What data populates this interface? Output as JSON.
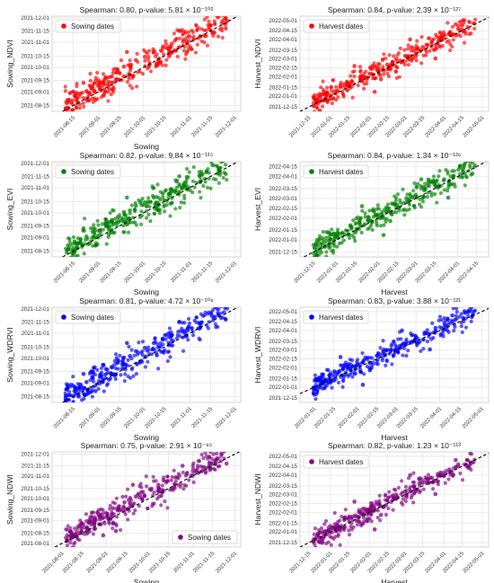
{
  "figure": {
    "background": "#ffffff",
    "panel_background": "#ffffff",
    "grid_color": "#e6e6e6",
    "axis_color": "#cccccc",
    "fit_line_color": "#000000"
  },
  "chart_data": [
    {
      "type": "scatter",
      "kind": "sowing",
      "title": "Spearman: 0.80, p-value: 5.81 × 10⁻¹⁰²",
      "xlabel": "Sowing",
      "ylabel": "Sowing_NDVI",
      "legend": {
        "label": "Sowing dates",
        "position": "top-left"
      },
      "color": "#ff0000",
      "xticks": [
        "2021-08-15",
        "2021-09-01",
        "2021-09-15",
        "2021-10-01",
        "2021-10-15",
        "2021-11-01",
        "2021-11-15",
        "2021-12-01"
      ],
      "yticks": [
        "2021-08-15",
        "2021-09-01",
        "2021-09-15",
        "2021-10-01",
        "2021-10-15",
        "2021-11-01",
        "2021-11-15",
        "2021-12-01"
      ],
      "xlim": [
        "2021-08-01",
        "2021-12-05"
      ],
      "ylim": [
        "2021-08-08",
        "2021-12-03"
      ],
      "grid": true,
      "trend_line": "dashed",
      "points": [
        [
          "2021-08-16",
          "2021-08-27"
        ],
        [
          "2021-08-20",
          "2021-08-30"
        ],
        [
          "2021-08-24",
          "2021-09-02"
        ],
        [
          "2021-08-28",
          "2021-09-08"
        ],
        [
          "2021-09-02",
          "2021-09-10"
        ],
        [
          "2021-09-06",
          "2021-09-18"
        ],
        [
          "2021-09-10",
          "2021-09-20"
        ],
        [
          "2021-09-14",
          "2021-09-26"
        ],
        [
          "2021-09-18",
          "2021-10-02"
        ],
        [
          "2021-09-22",
          "2021-10-04"
        ],
        [
          "2021-09-26",
          "2021-10-10"
        ],
        [
          "2021-10-02",
          "2021-10-14"
        ],
        [
          "2021-10-08",
          "2021-10-20"
        ],
        [
          "2021-10-14",
          "2021-10-25"
        ],
        [
          "2021-10-20",
          "2021-10-30"
        ],
        [
          "2021-10-28",
          "2021-11-04"
        ],
        [
          "2021-11-08",
          "2021-11-08"
        ],
        [
          "2021-11-25",
          "2021-11-18"
        ],
        [
          "2021-08-22",
          "2021-09-12"
        ],
        [
          "2021-09-08",
          "2021-09-05"
        ],
        [
          "2021-09-20",
          "2021-10-20"
        ],
        [
          "2021-10-10",
          "2021-10-05"
        ],
        [
          "2021-08-30",
          "2021-08-22"
        ],
        [
          "2021-10-25",
          "2021-11-15"
        ]
      ]
    },
    {
      "type": "scatter",
      "kind": "harvest",
      "title": "Spearman: 0.84, p-value: 2.39 × 10⁻¹²⁷",
      "xlabel": "",
      "ylabel": "Harvest_NDVI",
      "legend": {
        "label": "Harvest dates",
        "position": "top-left"
      },
      "color": "#ff0000",
      "xticks": [
        "2021-12-15",
        "2022-01-01",
        "2022-01-15",
        "2022-02-01",
        "2022-02-15",
        "2022-03-01",
        "2022-03-15",
        "2022-04-01",
        "2022-04-15",
        "2022-05-01"
      ],
      "yticks": [
        "2021-12-15",
        "2022-01-01",
        "2022-01-15",
        "2022-02-01",
        "2022-02-15",
        "2022-03-01",
        "2022-03-15",
        "2022-04-01",
        "2022-04-15",
        "2022-05-01"
      ],
      "xlim": [
        "2021-12-08",
        "2022-05-06"
      ],
      "ylim": [
        "2021-12-08",
        "2022-05-08"
      ],
      "grid": true,
      "trend_line": "dashed",
      "points": [
        [
          "2022-01-12",
          "2022-01-20"
        ],
        [
          "2022-01-18",
          "2022-01-25"
        ],
        [
          "2022-01-25",
          "2022-02-02"
        ],
        [
          "2022-02-01",
          "2022-02-06"
        ],
        [
          "2022-02-08",
          "2022-02-15"
        ],
        [
          "2022-02-15",
          "2022-02-20"
        ],
        [
          "2022-02-22",
          "2022-03-01"
        ],
        [
          "2022-03-01",
          "2022-03-06"
        ],
        [
          "2022-03-08",
          "2022-03-14"
        ],
        [
          "2022-03-15",
          "2022-03-20"
        ],
        [
          "2022-03-22",
          "2022-03-28"
        ],
        [
          "2022-03-29",
          "2022-04-05"
        ],
        [
          "2022-04-05",
          "2022-04-10"
        ],
        [
          "2022-04-12",
          "2022-04-18"
        ],
        [
          "2022-01-20",
          "2022-02-18"
        ],
        [
          "2022-02-10",
          "2022-01-28"
        ],
        [
          "2022-03-05",
          "2022-04-01"
        ],
        [
          "2022-03-25",
          "2022-03-02"
        ],
        [
          "2022-02-05",
          "2022-01-08"
        ],
        [
          "2022-04-10",
          "2022-04-25"
        ]
      ]
    },
    {
      "type": "scatter",
      "kind": "sowing",
      "title": "Spearman: 0.82, p-value: 9.84 × 10⁻¹¹⁵",
      "xlabel": "Sowing",
      "ylabel": "Sowing_EVI",
      "legend": {
        "label": "Sowing dates",
        "position": "top-left"
      },
      "color": "#008000",
      "xticks": [
        "2021-08-15",
        "2021-09-01",
        "2021-09-15",
        "2021-10-01",
        "2021-10-15",
        "2021-11-01",
        "2021-11-15",
        "2021-12-01"
      ],
      "yticks": [
        "2021-08-15",
        "2021-09-01",
        "2021-09-15",
        "2021-10-01",
        "2021-10-15",
        "2021-11-01",
        "2021-11-15",
        "2021-12-01"
      ],
      "xlim": [
        "2021-08-01",
        "2021-12-05"
      ],
      "ylim": [
        "2021-08-08",
        "2021-12-03"
      ],
      "grid": true,
      "trend_line": "dashed",
      "points": [
        [
          "2021-08-16",
          "2021-08-27"
        ],
        [
          "2021-08-20",
          "2021-08-30"
        ],
        [
          "2021-08-24",
          "2021-09-02"
        ],
        [
          "2021-08-28",
          "2021-09-08"
        ],
        [
          "2021-09-02",
          "2021-09-10"
        ],
        [
          "2021-09-06",
          "2021-09-18"
        ],
        [
          "2021-09-10",
          "2021-09-20"
        ],
        [
          "2021-09-14",
          "2021-09-26"
        ],
        [
          "2021-09-18",
          "2021-10-02"
        ],
        [
          "2021-09-22",
          "2021-10-04"
        ],
        [
          "2021-09-26",
          "2021-10-10"
        ],
        [
          "2021-10-02",
          "2021-10-14"
        ],
        [
          "2021-10-08",
          "2021-10-20"
        ],
        [
          "2021-10-14",
          "2021-10-25"
        ],
        [
          "2021-10-20",
          "2021-10-30"
        ],
        [
          "2021-10-28",
          "2021-11-04"
        ],
        [
          "2021-11-08",
          "2021-11-08"
        ],
        [
          "2021-11-25",
          "2021-11-18"
        ],
        [
          "2021-08-22",
          "2021-09-12"
        ],
        [
          "2021-09-08",
          "2021-09-05"
        ],
        [
          "2021-09-20",
          "2021-10-20"
        ],
        [
          "2021-10-10",
          "2021-10-05"
        ],
        [
          "2021-08-30",
          "2021-08-22"
        ],
        [
          "2021-10-25",
          "2021-11-15"
        ]
      ]
    },
    {
      "type": "scatter",
      "kind": "harvest",
      "title": "Spearman: 0.84, p-value: 1.34 × 10⁻¹²⁶",
      "xlabel": "Harvest",
      "ylabel": "Harvest_EVI",
      "legend": {
        "label": "Harvest dates",
        "position": "top-left"
      },
      "color": "#008000",
      "xticks": [
        "2021-12-15",
        "2022-01-01",
        "2022-01-15",
        "2022-02-01",
        "2022-02-15",
        "2022-03-01",
        "2022-03-15",
        "2022-04-01",
        "2022-04-15"
      ],
      "yticks": [
        "2021-12-15",
        "2022-01-01",
        "2022-01-15",
        "2022-02-01",
        "2022-02-15",
        "2022-03-01",
        "2022-03-15",
        "2022-04-01",
        "2022-04-15"
      ],
      "xlim": [
        "2021-12-05",
        "2022-04-24"
      ],
      "ylim": [
        "2021-12-08",
        "2022-04-22"
      ],
      "grid": true,
      "trend_line": "dashed",
      "points": [
        [
          "2022-01-12",
          "2022-01-20"
        ],
        [
          "2022-01-18",
          "2022-01-25"
        ],
        [
          "2022-01-25",
          "2022-02-02"
        ],
        [
          "2022-02-01",
          "2022-02-06"
        ],
        [
          "2022-02-08",
          "2022-02-15"
        ],
        [
          "2022-02-15",
          "2022-02-20"
        ],
        [
          "2022-02-22",
          "2022-03-01"
        ],
        [
          "2022-03-01",
          "2022-03-06"
        ],
        [
          "2022-03-08",
          "2022-03-14"
        ],
        [
          "2022-03-15",
          "2022-03-20"
        ],
        [
          "2022-03-22",
          "2022-03-28"
        ],
        [
          "2022-03-29",
          "2022-04-02"
        ],
        [
          "2022-04-05",
          "2022-04-08"
        ],
        [
          "2022-04-12",
          "2022-04-05"
        ],
        [
          "2022-01-20",
          "2022-02-18"
        ],
        [
          "2022-02-10",
          "2022-01-28"
        ],
        [
          "2022-03-05",
          "2022-03-28"
        ],
        [
          "2022-03-25",
          "2022-03-02"
        ],
        [
          "2022-02-05",
          "2022-01-08"
        ],
        [
          "2021-12-25",
          "2022-01-12"
        ]
      ]
    },
    {
      "type": "scatter",
      "kind": "sowing",
      "title": "Spearman: 0.81, p-value: 4.72 × 10⁻¹⁰⁸",
      "xlabel": "Sowing",
      "ylabel": "Sowing_WDRVI",
      "legend": {
        "label": "Sowing dates",
        "position": "top-left"
      },
      "color": "#0000ff",
      "xticks": [
        "2021-08-15",
        "2021-09-01",
        "2021-09-15",
        "2021-10-01",
        "2021-10-15",
        "2021-11-01",
        "2021-11-15",
        "2021-12-01"
      ],
      "yticks": [
        "2021-08-15",
        "2021-09-01",
        "2021-09-15",
        "2021-10-01",
        "2021-10-15",
        "2021-11-01",
        "2021-11-15",
        "2021-12-01"
      ],
      "xlim": [
        "2021-08-01",
        "2021-12-05"
      ],
      "ylim": [
        "2021-08-08",
        "2021-12-03"
      ],
      "grid": true,
      "trend_line": "dashed",
      "points": [
        [
          "2021-08-16",
          "2021-08-27"
        ],
        [
          "2021-08-20",
          "2021-08-30"
        ],
        [
          "2021-08-24",
          "2021-09-02"
        ],
        [
          "2021-08-28",
          "2021-09-08"
        ],
        [
          "2021-09-02",
          "2021-09-10"
        ],
        [
          "2021-09-06",
          "2021-09-18"
        ],
        [
          "2021-09-10",
          "2021-09-20"
        ],
        [
          "2021-09-14",
          "2021-09-26"
        ],
        [
          "2021-09-18",
          "2021-10-02"
        ],
        [
          "2021-09-22",
          "2021-10-04"
        ],
        [
          "2021-09-26",
          "2021-10-10"
        ],
        [
          "2021-10-02",
          "2021-10-14"
        ],
        [
          "2021-10-08",
          "2021-10-20"
        ],
        [
          "2021-10-14",
          "2021-10-25"
        ],
        [
          "2021-10-20",
          "2021-10-30"
        ],
        [
          "2021-10-28",
          "2021-11-04"
        ],
        [
          "2021-11-08",
          "2021-11-08"
        ],
        [
          "2021-11-25",
          "2021-11-18"
        ],
        [
          "2021-08-22",
          "2021-09-12"
        ],
        [
          "2021-09-08",
          "2021-09-05"
        ],
        [
          "2021-09-20",
          "2021-10-20"
        ],
        [
          "2021-10-10",
          "2021-10-05"
        ],
        [
          "2021-08-30",
          "2021-08-22"
        ],
        [
          "2021-10-25",
          "2021-11-15"
        ]
      ]
    },
    {
      "type": "scatter",
      "kind": "harvest",
      "title": "Spearman: 0.83, p-value: 3.88 × 10⁻¹²¹",
      "xlabel": "Harvest",
      "ylabel": "Harvest_WDRVI",
      "legend": {
        "label": "Harvest dates",
        "position": "top-left"
      },
      "color": "#0000ff",
      "xticks": [
        "2022-01-01",
        "2022-01-15",
        "2022-02-01",
        "2022-02-15",
        "2022-03-01",
        "2022-03-15",
        "2022-04-01",
        "2022-04-15",
        "2022-05-01"
      ],
      "yticks": [
        "2021-12-15",
        "2022-01-01",
        "2022-01-15",
        "2022-02-01",
        "2022-02-15",
        "2022-03-01",
        "2022-03-15",
        "2022-04-01",
        "2022-04-15",
        "2022-05-01"
      ],
      "xlim": [
        "2021-12-22",
        "2022-05-06"
      ],
      "ylim": [
        "2021-12-08",
        "2022-05-08"
      ],
      "grid": true,
      "trend_line": "dashed",
      "points": [
        [
          "2022-01-12",
          "2022-01-20"
        ],
        [
          "2022-01-18",
          "2022-01-25"
        ],
        [
          "2022-01-25",
          "2022-02-02"
        ],
        [
          "2022-02-01",
          "2022-02-06"
        ],
        [
          "2022-02-08",
          "2022-02-15"
        ],
        [
          "2022-02-15",
          "2022-02-20"
        ],
        [
          "2022-02-22",
          "2022-03-01"
        ],
        [
          "2022-03-01",
          "2022-03-06"
        ],
        [
          "2022-03-08",
          "2022-03-14"
        ],
        [
          "2022-03-15",
          "2022-03-20"
        ],
        [
          "2022-03-22",
          "2022-03-28"
        ],
        [
          "2022-03-29",
          "2022-04-05"
        ],
        [
          "2022-04-05",
          "2022-04-10"
        ],
        [
          "2022-04-12",
          "2022-04-18"
        ],
        [
          "2022-01-20",
          "2022-02-18"
        ],
        [
          "2022-02-10",
          "2022-01-28"
        ],
        [
          "2022-03-05",
          "2022-04-01"
        ],
        [
          "2022-03-25",
          "2022-03-02"
        ],
        [
          "2022-02-05",
          "2022-01-05"
        ],
        [
          "2022-04-10",
          "2022-04-25"
        ]
      ]
    },
    {
      "type": "scatter",
      "kind": "sowing",
      "title": "Spearman: 0.75, p-value: 2.91 × 10⁻⁸⁵",
      "xlabel": "Sowing",
      "ylabel": "Sowing_NDWI",
      "legend": {
        "label": "Sowing dates",
        "position": "bottom-right"
      },
      "color": "#800080",
      "xticks": [
        "2021-08-01",
        "2021-08-15",
        "2021-09-01",
        "2021-09-15",
        "2021-10-01",
        "2021-10-15",
        "2021-11-01",
        "2021-11-15",
        "2021-12-01"
      ],
      "yticks": [
        "2021-08-01",
        "2021-08-15",
        "2021-09-01",
        "2021-09-15",
        "2021-10-01",
        "2021-10-15",
        "2021-11-01",
        "2021-11-15",
        "2021-12-01"
      ],
      "xlim": [
        "2021-07-25",
        "2021-12-05"
      ],
      "ylim": [
        "2021-07-27",
        "2021-12-04"
      ],
      "grid": true,
      "trend_line": "dashed",
      "points": [
        [
          "2021-08-16",
          "2021-08-27"
        ],
        [
          "2021-08-20",
          "2021-08-30"
        ],
        [
          "2021-08-24",
          "2021-09-02"
        ],
        [
          "2021-08-28",
          "2021-09-08"
        ],
        [
          "2021-09-02",
          "2021-09-10"
        ],
        [
          "2021-09-06",
          "2021-09-18"
        ],
        [
          "2021-09-10",
          "2021-09-20"
        ],
        [
          "2021-09-14",
          "2021-09-26"
        ],
        [
          "2021-09-18",
          "2021-10-02"
        ],
        [
          "2021-09-22",
          "2021-10-04"
        ],
        [
          "2021-09-26",
          "2021-10-10"
        ],
        [
          "2021-10-02",
          "2021-10-14"
        ],
        [
          "2021-10-08",
          "2021-10-20"
        ],
        [
          "2021-10-14",
          "2021-10-25"
        ],
        [
          "2021-10-20",
          "2021-10-30"
        ],
        [
          "2021-10-28",
          "2021-11-04"
        ],
        [
          "2021-11-08",
          "2021-11-08"
        ],
        [
          "2021-11-25",
          "2021-11-18"
        ],
        [
          "2021-08-22",
          "2021-09-12"
        ],
        [
          "2021-09-08",
          "2021-08-18"
        ],
        [
          "2021-09-20",
          "2021-10-20"
        ],
        [
          "2021-10-10",
          "2021-10-05"
        ],
        [
          "2021-08-30",
          "2021-08-12"
        ],
        [
          "2021-10-25",
          "2021-11-15"
        ]
      ]
    },
    {
      "type": "scatter",
      "kind": "harvest",
      "title": "Spearman: 0.82, p-value: 1.23 × 10⁻¹¹³",
      "xlabel": "Harvest",
      "ylabel": "Harvest_NDWI",
      "legend": {
        "label": "Harvest dates",
        "position": "top-left"
      },
      "color": "#800080",
      "xticks": [
        "2021-12-15",
        "2022-01-01",
        "2022-01-15",
        "2022-02-01",
        "2022-02-15",
        "2022-03-01",
        "2022-03-15",
        "2022-04-01",
        "2022-04-15",
        "2022-05-01"
      ],
      "yticks": [
        "2021-12-15",
        "2022-01-01",
        "2022-01-15",
        "2022-02-01",
        "2022-02-15",
        "2022-03-01",
        "2022-03-15",
        "2022-04-01",
        "2022-04-15",
        "2022-05-01"
      ],
      "xlim": [
        "2021-12-08",
        "2022-05-06"
      ],
      "ylim": [
        "2021-12-08",
        "2022-05-08"
      ],
      "grid": true,
      "trend_line": "dashed",
      "points": [
        [
          "2022-01-12",
          "2022-01-20"
        ],
        [
          "2022-01-18",
          "2022-01-25"
        ],
        [
          "2022-01-25",
          "2022-02-02"
        ],
        [
          "2022-02-01",
          "2022-02-06"
        ],
        [
          "2022-02-08",
          "2022-02-15"
        ],
        [
          "2022-02-15",
          "2022-02-20"
        ],
        [
          "2022-02-22",
          "2022-03-01"
        ],
        [
          "2022-03-01",
          "2022-03-06"
        ],
        [
          "2022-03-08",
          "2022-03-14"
        ],
        [
          "2022-03-15",
          "2022-03-20"
        ],
        [
          "2022-03-22",
          "2022-03-28"
        ],
        [
          "2022-03-29",
          "2022-04-05"
        ],
        [
          "2022-04-05",
          "2022-04-10"
        ],
        [
          "2022-04-12",
          "2022-04-18"
        ],
        [
          "2022-01-20",
          "2022-02-18"
        ],
        [
          "2022-02-10",
          "2022-01-28"
        ],
        [
          "2022-03-05",
          "2022-04-01"
        ],
        [
          "2022-03-25",
          "2022-03-02"
        ],
        [
          "2022-02-05",
          "2022-01-05"
        ],
        [
          "2022-04-10",
          "2022-04-25"
        ]
      ]
    }
  ]
}
